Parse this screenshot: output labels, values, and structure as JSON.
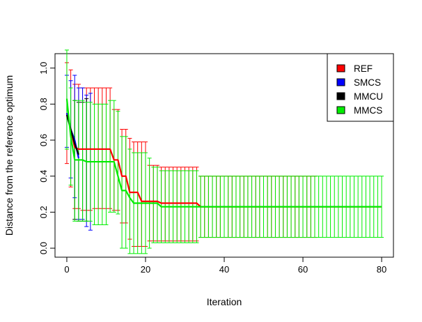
{
  "chart_data": {
    "type": "line",
    "title": "",
    "xlabel": "Iteration",
    "ylabel": "Distance from the reference optimum",
    "xlim": [
      -3,
      83
    ],
    "ylim": [
      -0.05,
      1.08
    ],
    "xticks": [
      0,
      20,
      40,
      60,
      80
    ],
    "yticks": [
      0.0,
      0.2,
      0.4,
      0.6,
      0.8,
      1.0
    ],
    "xtick_labels": [
      "0",
      "20",
      "40",
      "60",
      "80"
    ],
    "ytick_labels": [
      "0.0",
      "0.2",
      "0.4",
      "0.6",
      "0.8",
      "1.0"
    ],
    "grid": false,
    "legend_position": "top-right",
    "series": [
      {
        "name": "REF",
        "color": "#ff0000",
        "steps": [
          [
            0,
            0.75
          ],
          [
            1,
            0.66
          ],
          [
            2,
            0.56
          ],
          [
            3,
            0.55
          ],
          [
            12,
            0.49
          ],
          [
            14,
            0.4
          ],
          [
            16,
            0.31
          ],
          [
            19,
            0.26
          ],
          [
            24,
            0.25
          ],
          [
            34,
            0.23
          ],
          [
            80,
            0.23
          ]
        ],
        "error_steps": [
          [
            0,
            0.47,
            1.03
          ],
          [
            1,
            0.34,
            0.99
          ],
          [
            2,
            0.22,
            0.91
          ],
          [
            4,
            0.21,
            0.89
          ],
          [
            7,
            0.22,
            0.89
          ],
          [
            12,
            0.21,
            0.77
          ],
          [
            14,
            0.14,
            0.66
          ],
          [
            16,
            0.05,
            0.61
          ],
          [
            17,
            0.01,
            0.59
          ],
          [
            21,
            0.04,
            0.46
          ],
          [
            24,
            0.04,
            0.45
          ],
          [
            34,
            0.06,
            0.4
          ],
          [
            62,
            0.06,
            0.4
          ],
          [
            63,
            0.06,
            0.4
          ]
        ]
      },
      {
        "name": "SMCS",
        "color": "#0000ff",
        "steps": [
          [
            0,
            0.75
          ],
          [
            1,
            0.66
          ],
          [
            2,
            0.6
          ],
          [
            3,
            0.5
          ]
        ],
        "error_steps": [
          [
            0,
            0.56,
            0.96
          ],
          [
            1,
            0.39,
            0.93
          ],
          [
            2,
            0.28,
            0.96
          ],
          [
            3,
            0.16,
            0.89
          ],
          [
            5,
            0.12,
            0.85
          ],
          [
            6,
            0.1,
            0.86
          ]
        ]
      },
      {
        "name": "MMCU",
        "color": "#000000",
        "steps": [
          [
            0,
            0.74
          ],
          [
            1,
            0.66
          ],
          [
            2,
            0.58
          ],
          [
            3,
            0.52
          ]
        ],
        "error_steps": [
          [
            2,
            0.16,
            0.82
          ],
          [
            3,
            0.15,
            0.81
          ],
          [
            5,
            0.15,
            0.83
          ]
        ]
      },
      {
        "name": "MMCS",
        "color": "#00ee00",
        "steps": [
          [
            0,
            0.83
          ],
          [
            1,
            0.62
          ],
          [
            2,
            0.49
          ],
          [
            5,
            0.48
          ],
          [
            13,
            0.4
          ],
          [
            14,
            0.32
          ],
          [
            16,
            0.28
          ],
          [
            17,
            0.25
          ],
          [
            24,
            0.23
          ],
          [
            80,
            0.23
          ]
        ],
        "error_steps": [
          [
            0,
            0.55,
            1.1
          ],
          [
            1,
            0.35,
            0.89
          ],
          [
            2,
            0.15,
            0.82
          ],
          [
            5,
            0.15,
            0.81
          ],
          [
            7,
            0.13,
            0.8
          ],
          [
            11,
            0.2,
            0.82
          ],
          [
            13,
            0.19,
            0.76
          ],
          [
            14,
            0.0,
            0.62
          ],
          [
            16,
            -0.03,
            0.55
          ],
          [
            17,
            -0.03,
            0.53
          ],
          [
            21,
            0.0,
            0.5
          ],
          [
            22,
            0.03,
            0.45
          ],
          [
            24,
            0.03,
            0.43
          ],
          [
            34,
            0.06,
            0.4
          ],
          [
            80,
            0.06,
            0.4
          ]
        ]
      }
    ]
  }
}
